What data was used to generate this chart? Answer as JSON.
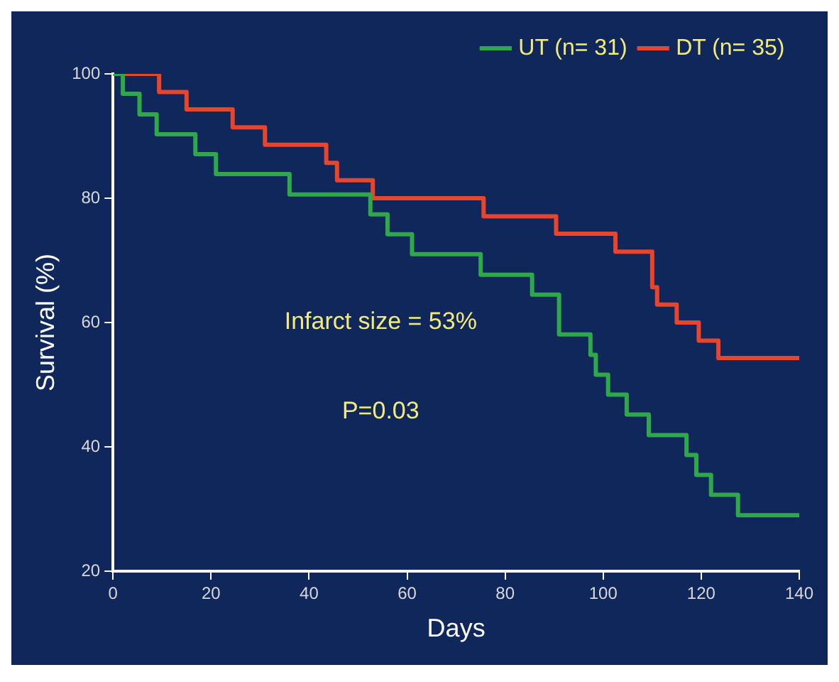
{
  "chart_data": {
    "type": "step",
    "xlabel": "Days",
    "ylabel": "Survival (%)",
    "xlim": [
      0,
      140
    ],
    "xticks": [
      0,
      20,
      40,
      60,
      80,
      100,
      120,
      140
    ],
    "ylim": [
      20,
      100
    ],
    "yticks": [
      20,
      40,
      60,
      80,
      100
    ],
    "grid": false,
    "legend": "top right",
    "marker": "none",
    "line_style": "solid",
    "series": [
      {
        "name": "UT (n= 31)",
        "color": "#2fa84a",
        "x": [
          0,
          2,
          5.4,
          8.9,
          16.8,
          21,
          36,
          52.5,
          56,
          61,
          75,
          85.5,
          91,
          97.4,
          98.5,
          101,
          104.8,
          109.3,
          117,
          119,
          122,
          127.5,
          140
        ],
        "values": [
          100,
          96.8,
          93.5,
          90.3,
          87.1,
          83.9,
          80.6,
          77.4,
          74.2,
          71,
          67.7,
          64.5,
          58.1,
          54.8,
          51.6,
          48.4,
          45.2,
          41.9,
          38.7,
          35.5,
          32.3,
          29,
          29
        ]
      },
      {
        "name": "DT (n= 35)",
        "color": "#e8452c",
        "x": [
          0,
          9.4,
          15,
          24.4,
          31,
          43.5,
          45.7,
          53,
          75.6,
          90.4,
          102.5,
          110,
          111,
          115,
          119.5,
          123.5,
          140
        ],
        "values": [
          100,
          97.1,
          94.3,
          91.4,
          88.6,
          85.7,
          82.9,
          80,
          77.1,
          74.3,
          71.4,
          65.7,
          62.9,
          60,
          57.1,
          54.3,
          54.3
        ]
      }
    ],
    "annotations": [
      "Infarct size = 53%",
      "P=0.03"
    ]
  }
}
